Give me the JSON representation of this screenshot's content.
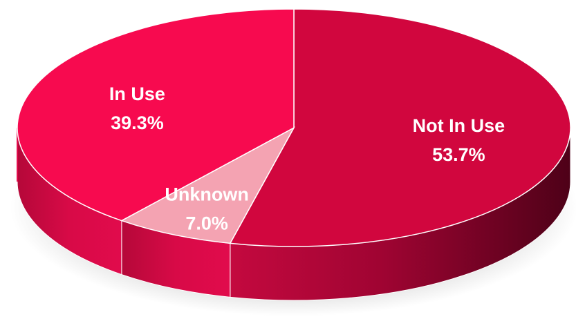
{
  "chart_data": {
    "type": "pie",
    "title": "",
    "style": "3d-exploded",
    "categories": [
      "Not In Use",
      "Unknown",
      "In Use"
    ],
    "values": [
      53.7,
      7.0,
      39.3
    ],
    "value_labels": [
      "53.7%",
      "7.0%",
      "39.3%"
    ],
    "colors": {
      "Not In Use": "#D1063E",
      "Unknown": "#F4A3B2",
      "In Use": "#F70A4F"
    },
    "side_colors": {
      "Not In Use": "#9A0330",
      "In Use": "#C80A44"
    },
    "legend": "none"
  }
}
